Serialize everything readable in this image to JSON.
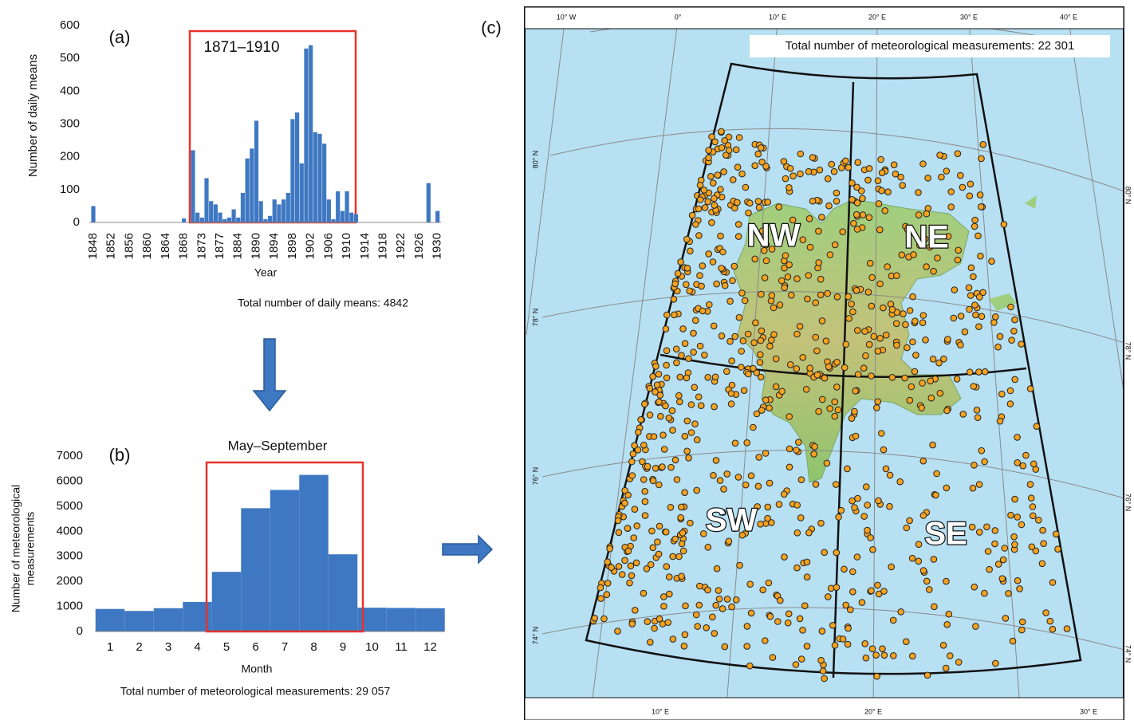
{
  "chart_data": [
    {
      "type": "bar",
      "panel_label": "(a)",
      "annotation": "1871–1910",
      "ylabel": "Number of daily means",
      "xlabel": "Year",
      "footnote": "Total number of daily means: 4842",
      "color": "#3f78c2",
      "categories": [
        "1848",
        null,
        null,
        null,
        "1852",
        null,
        null,
        null,
        "1856",
        null,
        null,
        null,
        "1860",
        null,
        null,
        null,
        "1864",
        null,
        null,
        null,
        "1868",
        null,
        null,
        null,
        "1873",
        null,
        null,
        null,
        "1877",
        null,
        null,
        null,
        "1884",
        null,
        null,
        null,
        "1890",
        null,
        null,
        null,
        "1894",
        null,
        null,
        null,
        "1898",
        null,
        null,
        null,
        "1902",
        null,
        null,
        null,
        "1906",
        null,
        null,
        null,
        "1910",
        null,
        null,
        null,
        "1914",
        null,
        null,
        null,
        "1918",
        null,
        null,
        null,
        "1922",
        null,
        null,
        null,
        "1926",
        null,
        null,
        null,
        "1930"
      ],
      "values": [
        50,
        0,
        0,
        0,
        0,
        0,
        0,
        0,
        0,
        0,
        0,
        0,
        0,
        0,
        0,
        0,
        0,
        0,
        0,
        0,
        12,
        0,
        220,
        30,
        15,
        135,
        65,
        55,
        30,
        10,
        15,
        40,
        15,
        90,
        195,
        225,
        310,
        65,
        10,
        20,
        70,
        55,
        70,
        90,
        315,
        335,
        180,
        530,
        540,
        275,
        270,
        240,
        70,
        10,
        95,
        35,
        95,
        30,
        25,
        0,
        0,
        0,
        0,
        0,
        0,
        0,
        0,
        0,
        0,
        0,
        0,
        0,
        0,
        0,
        120,
        0,
        35
      ],
      "ylim": [
        0,
        600
      ],
      "yticks": [
        0,
        100,
        200,
        300,
        400,
        500,
        600
      ]
    },
    {
      "type": "bar",
      "panel_label": "(b)",
      "annotation": "May–September",
      "ylabel": [
        "Number of meteorological",
        "measurements"
      ],
      "xlabel": "Month",
      "footnote": "Total number of meteorological measurements: 29 057",
      "color": "#3f78c2",
      "categories": [
        "1",
        "2",
        "3",
        "4",
        "5",
        "6",
        "7",
        "8",
        "9",
        "10",
        "11",
        "12"
      ],
      "values": [
        900,
        820,
        930,
        1180,
        2380,
        4920,
        5650,
        6250,
        3080,
        950,
        940,
        930
      ],
      "ylim": [
        0,
        7000
      ],
      "yticks": [
        0,
        1000,
        2000,
        3000,
        4000,
        5000,
        6000,
        7000
      ]
    }
  ],
  "map": {
    "panel_label": "(c)",
    "title": "Total number of meteorological measurements: 22 301",
    "top_lon_labels": [
      "10° W",
      "0°",
      "10° E",
      "20° E",
      "30° E",
      "40° E"
    ],
    "bottom_lon_labels": [
      "10° E",
      "20° E",
      "30° E"
    ],
    "left_lat_labels": [
      "80° N",
      "78° N",
      "76° N",
      "74° N"
    ],
    "right_lat_labels": [
      "80° N",
      "78° N",
      "76° N",
      "74° N"
    ],
    "regions": [
      "NW",
      "NE",
      "SW",
      "SE"
    ]
  }
}
